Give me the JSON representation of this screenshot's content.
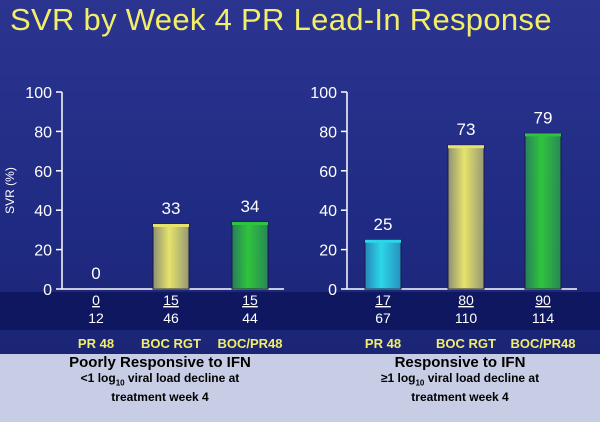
{
  "title": "SVR by Week 4 PR Lead-In Response",
  "chart_data": [
    {
      "type": "bar",
      "ylabel": "SVR (%)",
      "ylim": [
        0,
        100
      ],
      "yticks": [
        0,
        20,
        40,
        60,
        80,
        100
      ],
      "categories": [
        "PR 48",
        "BOC RGT",
        "BOC/PR48"
      ],
      "values": [
        0,
        33,
        34
      ],
      "numerators": [
        "0",
        "15",
        "15"
      ],
      "denominators": [
        "12",
        "46",
        "44"
      ],
      "bar_colors": [
        "#e6e36b",
        "#e6e36b",
        "#2fc43c"
      ],
      "group_title": "Poorly Responsive to IFN",
      "group_subtitle_pre": "<1 log",
      "group_subtitle_sub": "10",
      "group_subtitle_post": " viral load decline at",
      "group_subtitle_line2": "treatment week 4"
    },
    {
      "type": "bar",
      "ylabel": "",
      "ylim": [
        0,
        100
      ],
      "yticks": [
        0,
        20,
        40,
        60,
        80,
        100
      ],
      "categories": [
        "PR 48",
        "BOC RGT",
        "BOC/PR48"
      ],
      "values": [
        25,
        73,
        79
      ],
      "numerators": [
        "17",
        "80",
        "90"
      ],
      "denominators": [
        "67",
        "110",
        "114"
      ],
      "bar_colors": [
        "#2cd6e8",
        "#e6e36b",
        "#2fc43c"
      ],
      "group_title": "Responsive to IFN",
      "group_subtitle_pre": "≥1 log",
      "group_subtitle_sub": "10",
      "group_subtitle_post": " viral load decline at",
      "group_subtitle_line2": "treatment week 4"
    }
  ]
}
